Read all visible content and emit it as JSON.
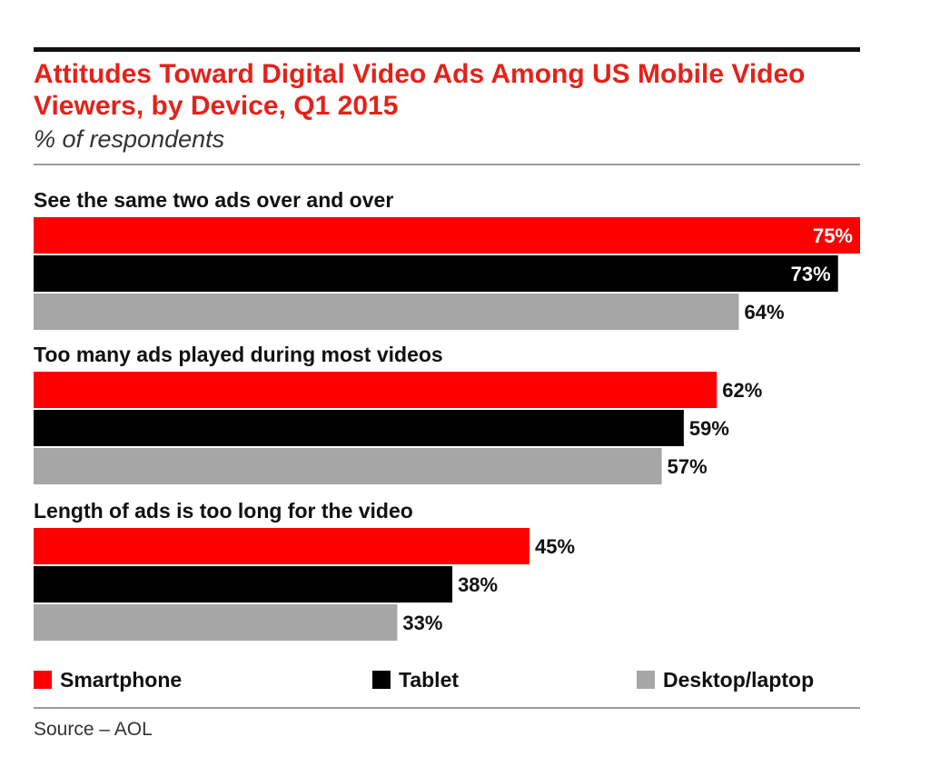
{
  "chart_data": {
    "type": "bar",
    "orientation": "horizontal",
    "title": "Attitudes Toward Digital Video Ads Among US Mobile Video Viewers, by Device, Q1 2015",
    "subtitle": "% of respondents",
    "categories": [
      "See the same two ads over and over",
      "Too many ads played during most videos",
      "Length of ads is too long for the video"
    ],
    "series": [
      {
        "name": "Smartphone",
        "color": "#ff0000",
        "values": [
          75,
          62,
          45
        ],
        "labels": [
          "75%",
          "62%",
          "45%"
        ]
      },
      {
        "name": "Tablet",
        "color": "#000000",
        "values": [
          73,
          59,
          38
        ],
        "labels": [
          "73%",
          "59%",
          "38%"
        ]
      },
      {
        "name": "Desktop/laptop",
        "color": "#a6a6a6",
        "values": [
          64,
          57,
          33
        ],
        "labels": [
          "64%",
          "57%",
          "33%"
        ]
      }
    ],
    "xlim": [
      0,
      75
    ],
    "grid": false,
    "legend_position": "bottom",
    "source": "Source – AOL"
  }
}
